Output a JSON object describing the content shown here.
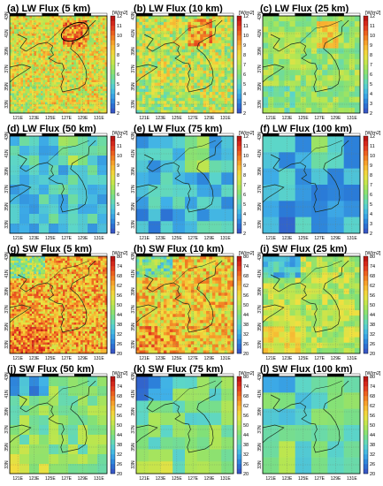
{
  "chart_data": [
    {
      "type": "heatmap",
      "title": "(a) LW Flux (5 km)",
      "unit": "[W/m2]",
      "colorbar_ticks": [
        2,
        3,
        4,
        5,
        6,
        7,
        8,
        9,
        10,
        11,
        12
      ],
      "clim": [
        2,
        12
      ],
      "ylim": [
        32,
        43
      ],
      "xlim": [
        120,
        132
      ],
      "xticks": [
        "121E",
        "123E",
        "125E",
        "127E",
        "129E",
        "131E"
      ],
      "yticks": [
        "33N",
        "35N",
        "37N",
        "39N",
        "41N",
        "43N"
      ],
      "level": 7.8,
      "resolution_km": 5
    },
    {
      "type": "heatmap",
      "title": "(b) LW Flux (10 km)",
      "unit": "[W/m2]",
      "colorbar_ticks": [
        2,
        3,
        4,
        5,
        6,
        7,
        8,
        9,
        10,
        11,
        12
      ],
      "clim": [
        2,
        12
      ],
      "ylim": [
        32,
        43
      ],
      "xlim": [
        120,
        132
      ],
      "xticks": [
        "121E",
        "123E",
        "125E",
        "127E",
        "129E",
        "131E"
      ],
      "yticks": [
        "33N",
        "35N",
        "37N",
        "39N",
        "41N",
        "43N"
      ],
      "level": 7.2,
      "resolution_km": 10
    },
    {
      "type": "heatmap",
      "title": "(c) LW Flux (25 km)",
      "unit": "[W/m2]",
      "colorbar_ticks": [
        2,
        3,
        4,
        5,
        6,
        7,
        8,
        9,
        10,
        11,
        12
      ],
      "clim": [
        2,
        12
      ],
      "ylim": [
        32,
        43
      ],
      "xlim": [
        120,
        132
      ],
      "xticks": [
        "121E",
        "123E",
        "125E",
        "127E",
        "129E",
        "131E"
      ],
      "yticks": [
        "33N",
        "35N",
        "37N",
        "39N",
        "41N",
        "43N"
      ],
      "level": 6.5,
      "resolution_km": 25
    },
    {
      "type": "heatmap",
      "title": "(d) LW Flux (50 km)",
      "unit": "[W/m2]",
      "colorbar_ticks": [
        2,
        3,
        4,
        5,
        6,
        7,
        8,
        9,
        10,
        11,
        12
      ],
      "clim": [
        2,
        12
      ],
      "ylim": [
        32,
        43
      ],
      "xlim": [
        120,
        132
      ],
      "xticks": [
        "121E",
        "123E",
        "125E",
        "127E",
        "129E",
        "131E"
      ],
      "yticks": [
        "33N",
        "35N",
        "37N",
        "39N",
        "41N",
        "43N"
      ],
      "level": 4.6,
      "resolution_km": 50
    },
    {
      "type": "heatmap",
      "title": "(e) LW Flux (75 km)",
      "unit": "[W/m2]",
      "colorbar_ticks": [
        2,
        3,
        4,
        5,
        6,
        7,
        8,
        9,
        10,
        11,
        12
      ],
      "clim": [
        2,
        12
      ],
      "ylim": [
        32,
        43
      ],
      "xlim": [
        120,
        132
      ],
      "xticks": [
        "121E",
        "123E",
        "125E",
        "127E",
        "129E",
        "131E"
      ],
      "yticks": [
        "33N",
        "35N",
        "37N",
        "39N",
        "41N",
        "43N"
      ],
      "level": 4.3,
      "resolution_km": 75
    },
    {
      "type": "heatmap",
      "title": "(f) LW Flux (100 km)",
      "unit": "[W/m2]",
      "colorbar_ticks": [
        2,
        3,
        4,
        5,
        6,
        7,
        8,
        9,
        10,
        11,
        12
      ],
      "clim": [
        2,
        12
      ],
      "ylim": [
        32,
        43
      ],
      "xlim": [
        120,
        132
      ],
      "xticks": [
        "121E",
        "123E",
        "125E",
        "127E",
        "129E",
        "131E"
      ],
      "yticks": [
        "33N",
        "35N",
        "37N",
        "39N",
        "41N",
        "43N"
      ],
      "level": 4.1,
      "resolution_km": 100
    },
    {
      "type": "heatmap",
      "title": "(g) SW Flux (5 km)",
      "unit": "[W/m2]",
      "colorbar_ticks": [
        20,
        26,
        32,
        38,
        44,
        50,
        56,
        62,
        68,
        74,
        80
      ],
      "clim": [
        20,
        80
      ],
      "ylim": [
        32,
        43
      ],
      "xlim": [
        120,
        132
      ],
      "xticks": [
        "121E",
        "123E",
        "125E",
        "127E",
        "129E",
        "131E"
      ],
      "yticks": [
        "33N",
        "35N",
        "37N",
        "39N",
        "41N",
        "43N"
      ],
      "level": 62,
      "resolution_km": 5
    },
    {
      "type": "heatmap",
      "title": "(h) SW Flux (10 km)",
      "unit": "[W/m2]",
      "colorbar_ticks": [
        20,
        26,
        32,
        38,
        44,
        50,
        56,
        62,
        68,
        74,
        80
      ],
      "clim": [
        20,
        80
      ],
      "ylim": [
        32,
        43
      ],
      "xlim": [
        120,
        132
      ],
      "xticks": [
        "121E",
        "123E",
        "125E",
        "127E",
        "129E",
        "131E"
      ],
      "yticks": [
        "33N",
        "35N",
        "37N",
        "39N",
        "41N",
        "43N"
      ],
      "level": 58,
      "resolution_km": 10
    },
    {
      "type": "heatmap",
      "title": "(i) SW Flux (25 km)",
      "unit": "[W/m2]",
      "colorbar_ticks": [
        20,
        26,
        32,
        38,
        44,
        50,
        56,
        62,
        68,
        74,
        80
      ],
      "clim": [
        20,
        80
      ],
      "ylim": [
        32,
        43
      ],
      "xlim": [
        120,
        132
      ],
      "xticks": [
        "121E",
        "123E",
        "125E",
        "127E",
        "129E",
        "131E"
      ],
      "yticks": [
        "33N",
        "35N",
        "37N",
        "39N",
        "41N",
        "43N"
      ],
      "level": 50,
      "resolution_km": 25
    },
    {
      "type": "heatmap",
      "title": "(j) SW Flux (50 km)",
      "unit": "[W/m2]",
      "colorbar_ticks": [
        20,
        26,
        32,
        38,
        44,
        50,
        56,
        62,
        68,
        74,
        80
      ],
      "clim": [
        20,
        80
      ],
      "ylim": [
        32,
        43
      ],
      "xlim": [
        120,
        132
      ],
      "xticks": [
        "121E",
        "123E",
        "125E",
        "127E",
        "129E",
        "131E"
      ],
      "yticks": [
        "33N",
        "35N",
        "37N",
        "39N",
        "41N",
        "43N"
      ],
      "level": 45,
      "resolution_km": 50
    },
    {
      "type": "heatmap",
      "title": "(k) SW Flux (75 km)",
      "unit": "[W/m2]",
      "colorbar_ticks": [
        20,
        26,
        32,
        38,
        44,
        50,
        56,
        62,
        68,
        74,
        80
      ],
      "clim": [
        20,
        80
      ],
      "ylim": [
        32,
        43
      ],
      "xlim": [
        120,
        132
      ],
      "xticks": [
        "121E",
        "123E",
        "125E",
        "127E",
        "129E",
        "131E"
      ],
      "yticks": [
        "33N",
        "35N",
        "37N",
        "39N",
        "41N",
        "43N"
      ],
      "level": 43,
      "resolution_km": 75
    },
    {
      "type": "heatmap",
      "title": "(l) SW Flux (100 km)",
      "unit": "[W/m2]",
      "colorbar_ticks": [
        20,
        26,
        32,
        38,
        44,
        50,
        56,
        62,
        68,
        74,
        80
      ],
      "clim": [
        20,
        80
      ],
      "ylim": [
        32,
        43
      ],
      "xlim": [
        120,
        132
      ],
      "xticks": [
        "121E",
        "123E",
        "125E",
        "127E",
        "129E",
        "131E"
      ],
      "yticks": [
        "33N",
        "35N",
        "37N",
        "39N",
        "41N",
        "43N"
      ],
      "level": 40,
      "resolution_km": 100
    }
  ],
  "colors": {
    "colormap": [
      "#3b4cc0",
      "#2a7bd8",
      "#3fb0e8",
      "#5cd6c8",
      "#7fe07a",
      "#b8e650",
      "#f0e040",
      "#f8b030",
      "#f07020",
      "#e03020",
      "#b01010"
    ],
    "coastline": "#1a2a1a",
    "frame": "#000000"
  }
}
